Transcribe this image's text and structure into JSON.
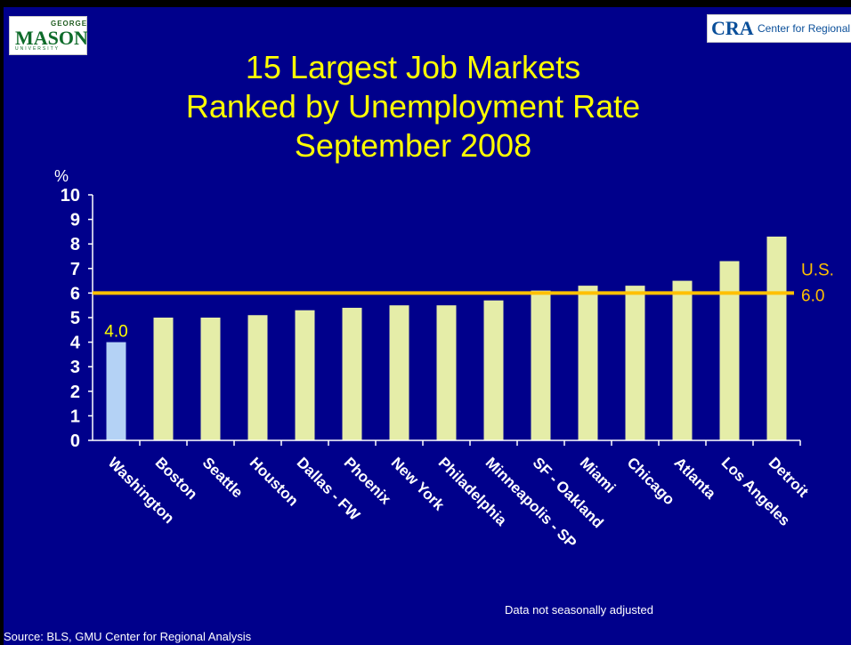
{
  "logos": {
    "left": {
      "line1": "GEORGE",
      "line2": "MASON",
      "line3": "UNIVERSITY"
    },
    "right": {
      "mark": "CRA",
      "text": "Center for Regional Analy"
    }
  },
  "title_lines": [
    "15 Largest Job Markets",
    "Ranked by Unemployment Rate",
    "September 2008"
  ],
  "note": "Data not seasonally adjusted",
  "source": "Source: BLS, GMU Center for Regional Analysis",
  "colors": {
    "background": "#00008b",
    "bar": "#e5eda8",
    "highlight_bar": "#b4d2f5",
    "reference_line": "#ffc000",
    "title": "#ffff00"
  },
  "chart_data": {
    "type": "bar",
    "title": "15 Largest Job Markets Ranked by Unemployment Rate September 2008",
    "ylabel": "%",
    "ylim": [
      0,
      10
    ],
    "yticks": [
      0,
      1,
      2,
      3,
      4,
      5,
      6,
      7,
      8,
      9,
      10
    ],
    "grid": false,
    "categories": [
      "Washington",
      "Boston",
      "Seattle",
      "Houston",
      "Dallas - FW",
      "Phoenix",
      "New York",
      "Philadelphia",
      "Minneapolis - SP",
      "SF - Oakland",
      "Miami",
      "Chicago",
      "Atlanta",
      "Los Angeles",
      "Detroit"
    ],
    "values": [
      4.0,
      5.0,
      5.0,
      5.1,
      5.3,
      5.4,
      5.5,
      5.5,
      5.7,
      6.1,
      6.3,
      6.3,
      6.5,
      7.3,
      8.3
    ],
    "highlight_index": 0,
    "data_labels": [
      {
        "index": 0,
        "text": "4.0"
      }
    ],
    "reference_line": {
      "value": 6.0,
      "label_line1": "U.S.",
      "label_line2": "6.0"
    }
  }
}
